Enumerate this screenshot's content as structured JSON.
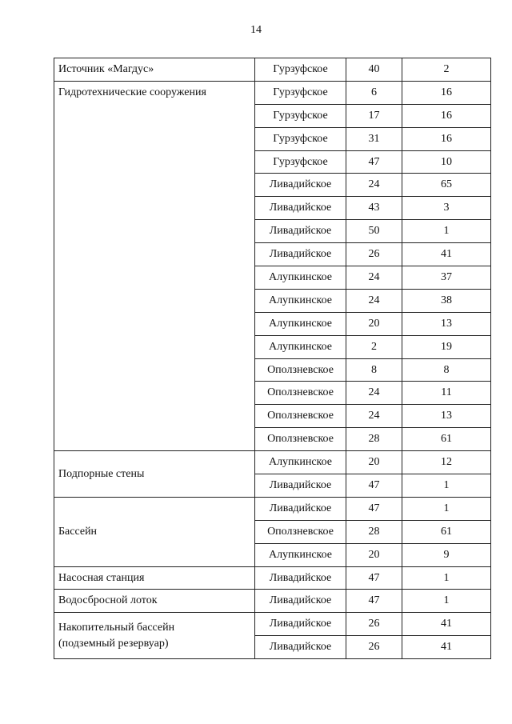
{
  "page_number": "14",
  "table": {
    "groups": [
      {
        "name": [
          "Источник «Магдус»"
        ],
        "rows": [
          [
            "Гурзуфское",
            40,
            2
          ]
        ]
      },
      {
        "name": [
          "Гидротехнические сооружения"
        ],
        "valign": "top",
        "rows": [
          [
            "Гурзуфское",
            6,
            16
          ],
          [
            "Гурзуфское",
            17,
            16
          ],
          [
            "Гурзуфское",
            31,
            16
          ],
          [
            "Гурзуфское",
            47,
            10
          ],
          [
            "Ливадийское",
            24,
            65
          ],
          [
            "Ливадийское",
            43,
            3
          ],
          [
            "Ливадийское",
            50,
            1
          ],
          [
            "Ливадийское",
            26,
            41
          ],
          [
            "Алупкинское",
            24,
            37
          ],
          [
            "Алупкинское",
            24,
            38
          ],
          [
            "Алупкинское",
            20,
            13
          ],
          [
            "Алупкинское",
            2,
            19
          ],
          [
            "Оползневское",
            8,
            8
          ],
          [
            "Оползневское",
            24,
            11
          ],
          [
            "Оползневское",
            24,
            13
          ],
          [
            "Оползневское",
            28,
            61
          ]
        ]
      },
      {
        "name": [
          "Подпорные стены"
        ],
        "rows": [
          [
            "Алупкинское",
            20,
            12
          ],
          [
            "Ливадийское",
            47,
            1
          ]
        ]
      },
      {
        "name": [
          "Бассейн"
        ],
        "rows": [
          [
            "Ливадийское",
            47,
            1
          ],
          [
            "Оползневское",
            28,
            61
          ],
          [
            "Алупкинское",
            20,
            9
          ]
        ]
      },
      {
        "name": [
          "Насосная станция"
        ],
        "rows": [
          [
            "Ливадийское",
            47,
            1
          ]
        ]
      },
      {
        "name": [
          "Водосбросной лоток"
        ],
        "rows": [
          [
            "Ливадийское",
            47,
            1
          ]
        ]
      },
      {
        "name": [
          "Накопительный бассейн",
          "(подземный резервуар)"
        ],
        "rows": [
          [
            "Ливадийское",
            26,
            41
          ],
          [
            "Ливадийское",
            26,
            41
          ]
        ]
      }
    ]
  }
}
